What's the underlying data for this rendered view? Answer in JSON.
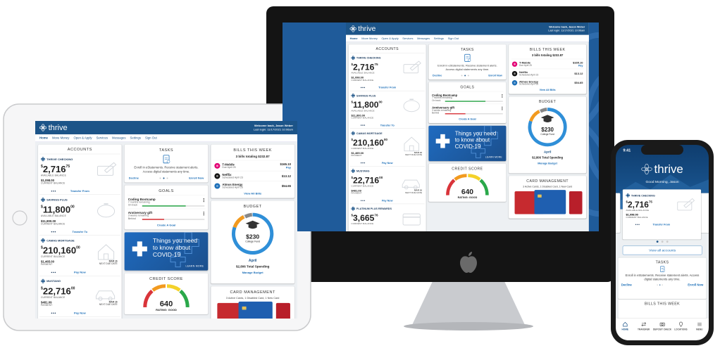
{
  "brand": "thrive",
  "header": {
    "welcome": "Welcome back, Jason Weber",
    "last_login": "Last login: 11/17/2021 10:06am"
  },
  "nav": [
    "Home",
    "Move Money",
    "Open & Apply",
    "Services",
    "Messages",
    "Settings",
    "Sign Out"
  ],
  "accounts": {
    "title": "ACCOUNTS",
    "currency": "$",
    "items": [
      {
        "name": "THRIVE CHECKING",
        "dollars": "2,716",
        "cents": "75",
        "label": "AVAILABLE BALANCE",
        "sub_value": "$1,098.00",
        "sub_label": "CURRENT BALANCE",
        "action": "Transfer From"
      },
      {
        "name": "SAVINGS PLUS",
        "dollars": "11,800",
        "cents": "00",
        "label": "AVAILABLE BALANCE",
        "sub_value": "$11,800.00",
        "sub_label": "CURRENT BALANCE",
        "action": "Transfer To"
      },
      {
        "name": "CAMAS MORTGAGE",
        "dollars": "210,160",
        "cents": "00",
        "label": "CURRENT BALANCE",
        "sub_value": "$1,465.00",
        "sub_label": "PAYMENT",
        "due": "MAR 16",
        "due_label": "NEXT DUE DATE",
        "action": "Pay Now"
      },
      {
        "name": "MUSTANG",
        "dollars": "22,716",
        "cents": "00",
        "label": "CURRENT BALANCE",
        "sub_value": "$481.09",
        "sub_label": "PAYMENT",
        "due": "MAR 16",
        "due_label": "NEXT DUE DATE",
        "action": "Pay Now"
      },
      {
        "name": "PLATINUM PLUS REWARDS",
        "dollars": "3,665",
        "cents": "76",
        "label": "CURRENT BALANCE"
      }
    ]
  },
  "tasks": {
    "title": "TASKS",
    "text": "Enroll in eStatements. Receive statement alerts. Access digital statements any time.",
    "decline": "Decline",
    "accept": "Enroll Now"
  },
  "goals": {
    "title": "GOALS",
    "items": [
      {
        "name": "Coding Bootcamp",
        "remaining": "7 months remaining",
        "status": "On track"
      },
      {
        "name": "Anniversary gift",
        "remaining": "3 weeks remaining",
        "status": "Behind"
      }
    ],
    "action": "Create A Goal"
  },
  "covid": {
    "text": "Things you need to know about COVID-19",
    "action": "LEARN MORE"
  },
  "credit": {
    "title": "CREDIT SCORE",
    "score": "640",
    "rating": "RATING: GOOD"
  },
  "bills": {
    "title": "BILLS THIS WEEK",
    "summary": "3 bills totaling $232.87",
    "items": [
      {
        "name": "T-Mobile",
        "when": "Due April 25",
        "amount": "$165.10",
        "action": "Pay"
      },
      {
        "name": "Netflix",
        "when": "Scheduled April 23",
        "amount": "$13.12"
      },
      {
        "name": "Atmos Energy",
        "when": "Scheduled April 26",
        "amount": "$54.65"
      }
    ],
    "action": "View All Bills"
  },
  "budget": {
    "title": "BUDGET",
    "amount": "$230",
    "label": "College Fund",
    "month": "April",
    "spending": "$2,806 Total Spending",
    "action": "Manage Budget"
  },
  "cards": {
    "title": "CARD MANAGEMENT",
    "summary": "3 Active Cards, 1 Disabled Card, 1 New Card"
  },
  "phone": {
    "time": "9:41",
    "greeting": "Good Morning, Jason",
    "view_all": "View all accounts",
    "tabs": [
      "HOME",
      "TRANSFER",
      "DEPOSIT CHECK",
      "LOCATIONS",
      "MENU"
    ]
  }
}
